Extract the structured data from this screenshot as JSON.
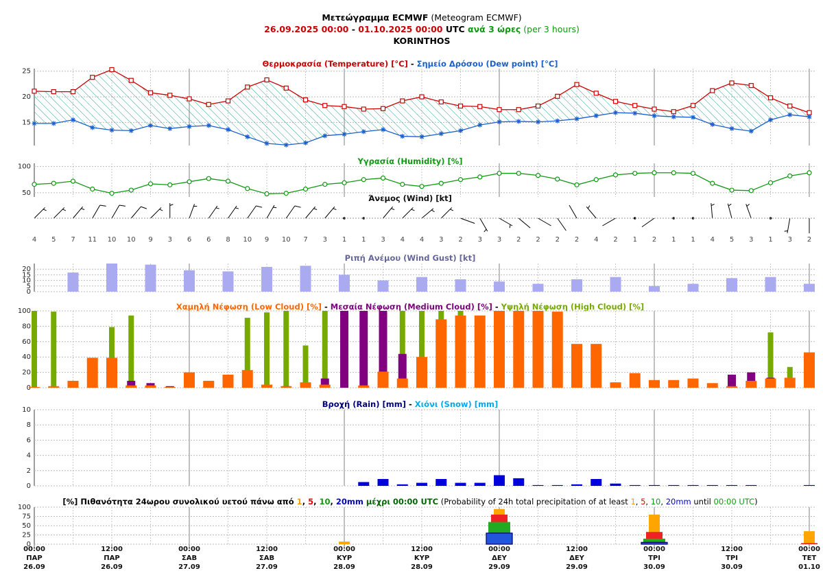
{
  "header": {
    "lines": [
      [
        {
          "text": "Μετεώγραμμα ECMWF",
          "color": "#000000",
          "bold": true
        },
        {
          "text": " (Meteogram ECMWF)",
          "color": "#000000",
          "bold": false
        }
      ],
      [
        {
          "text": "26.09.2025 00:00",
          "color": "#cc0000",
          "bold": true
        },
        {
          "text": " - ",
          "color": "#000000",
          "bold": true
        },
        {
          "text": "01.10.2025 00:00",
          "color": "#cc0000",
          "bold": true
        },
        {
          "text": " UTC",
          "color": "#000000",
          "bold": true
        },
        {
          "text": " ανά 3 ώρες",
          "color": "#119911",
          "bold": true
        },
        {
          "text": " (per 3 hours)",
          "color": "#119911",
          "bold": false
        }
      ],
      [
        {
          "text": "KORINTHOS",
          "color": "#000000",
          "bold": true
        }
      ]
    ]
  },
  "x_axis": {
    "categories": [
      {
        "time": "00:00",
        "day": "ΠΑΡ",
        "date": "26.09"
      },
      null,
      null,
      null,
      {
        "time": "12:00",
        "day": "ΠΑΡ",
        "date": "26.09"
      },
      null,
      null,
      null,
      {
        "time": "00:00",
        "day": "ΣΑΒ",
        "date": "27.09"
      },
      null,
      null,
      null,
      {
        "time": "12:00",
        "day": "ΣΑΒ",
        "date": "27.09"
      },
      null,
      null,
      null,
      {
        "time": "00:00",
        "day": "ΚΥΡ",
        "date": "28.09"
      },
      null,
      null,
      null,
      {
        "time": "12:00",
        "day": "ΚΥΡ",
        "date": "28.09"
      },
      null,
      null,
      null,
      {
        "time": "00:00",
        "day": "ΔΕΥ",
        "date": "29.09"
      },
      null,
      null,
      null,
      {
        "time": "12:00",
        "day": "ΔΕΥ",
        "date": "29.09"
      },
      null,
      null,
      null,
      {
        "time": "00:00",
        "day": "ΤΡΙ",
        "date": "30.09"
      },
      null,
      null,
      null,
      {
        "time": "12:00",
        "day": "ΤΡΙ",
        "date": "30.09"
      },
      null,
      null,
      null,
      {
        "time": "00:00",
        "day": "ΤΕΤ",
        "date": "01.10"
      }
    ]
  },
  "chart_data": [
    {
      "type": "line",
      "title": [
        {
          "text": "Θερμοκρασία (Temperature) [°C]",
          "color": "#cc0000",
          "bold": true
        },
        {
          "text": " - ",
          "color": "#000000",
          "bold": true
        },
        {
          "text": "Σημείο Δρόσου (Dew point) [°C]",
          "color": "#1a5fd0",
          "bold": true
        }
      ],
      "ylim": [
        10.5,
        25.5
      ],
      "yticks": [
        15,
        20,
        25
      ],
      "grid": true,
      "fill_between": "#2aa198",
      "series": [
        {
          "color": "#cc0000",
          "marker": "square",
          "values": [
            21.1,
            21.0,
            21.0,
            23.8,
            25.3,
            23.2,
            20.8,
            20.3,
            19.6,
            18.5,
            19.2,
            21.9,
            23.3,
            21.7,
            19.4,
            18.3,
            18.1,
            17.6,
            17.7,
            19.2,
            20.0,
            19.0,
            18.2,
            18.1,
            17.5,
            17.5,
            18.2,
            20.1,
            22.4,
            20.7,
            19.1,
            18.3,
            17.6,
            17.1,
            18.3,
            21.2,
            22.7,
            22.2,
            19.8,
            18.2,
            16.9
          ]
        },
        {
          "color": "#1a5fd0",
          "marker": "star",
          "values": [
            14.8,
            14.8,
            15.5,
            14.0,
            13.5,
            13.4,
            14.4,
            13.8,
            14.2,
            14.4,
            13.6,
            12.2,
            10.9,
            10.6,
            11.0,
            12.4,
            12.7,
            13.2,
            13.6,
            12.3,
            12.2,
            12.8,
            13.4,
            14.5,
            15.1,
            15.2,
            15.1,
            15.3,
            15.7,
            16.3,
            16.9,
            16.8,
            16.3,
            16.1,
            16.0,
            14.6,
            13.8,
            13.3,
            15.5,
            16.5,
            16.1
          ]
        }
      ]
    },
    {
      "type": "line",
      "title": [
        {
          "text": "Υγρασία (Humidity) [%]",
          "color": "#119911",
          "bold": true
        }
      ],
      "ylim": [
        42,
        106
      ],
      "yticks": [
        50,
        100
      ],
      "grid": true,
      "series": [
        {
          "color": "#119911",
          "marker": "circle",
          "values": [
            66,
            68,
            72,
            57,
            49,
            55,
            67,
            65,
            71,
            77,
            72,
            58,
            48,
            49,
            57,
            66,
            69,
            75,
            78,
            66,
            62,
            68,
            75,
            80,
            87,
            87,
            83,
            76,
            65,
            75,
            84,
            87,
            88,
            88,
            87,
            68,
            55,
            54,
            69,
            82,
            88
          ]
        }
      ]
    },
    {
      "type": "wind_barbs",
      "title": [
        {
          "text": "Άνεμος (Wind) [kt]",
          "color": "#111111",
          "bold": true
        }
      ],
      "color": "#000000",
      "speed": [
        4,
        5,
        7,
        11,
        10,
        10,
        9,
        3,
        6,
        6,
        8,
        10,
        9,
        10,
        7,
        3,
        1,
        1,
        3,
        4,
        4,
        3,
        2,
        3,
        3,
        2,
        2,
        2,
        2,
        4,
        2,
        1,
        2,
        1,
        1,
        4,
        5,
        3,
        1,
        3,
        2
      ],
      "direction": [
        45,
        45,
        40,
        30,
        30,
        40,
        45,
        0,
        20,
        35,
        35,
        35,
        30,
        35,
        40,
        40,
        0,
        0,
        40,
        45,
        50,
        45,
        110,
        150,
        120,
        130,
        120,
        145,
        330,
        320,
        240,
        240,
        235,
        250,
        0,
        355,
        345,
        340,
        135,
        190,
        180
      ]
    },
    {
      "type": "bar",
      "title": [
        {
          "text": "Ριπή Ανέμου (Wind Gust) [kt]",
          "color": "#666699",
          "bold": true
        }
      ],
      "ylim": [
        0,
        25
      ],
      "yticks": [
        0,
        5,
        10,
        15,
        20
      ],
      "grid": true,
      "series": [
        {
          "color": "#aaaaf0",
          "values": [
            null,
            null,
            17,
            null,
            25,
            null,
            24,
            null,
            19,
            null,
            18,
            null,
            22,
            null,
            23,
            null,
            15,
            null,
            10,
            null,
            13,
            null,
            11,
            null,
            9,
            null,
            7,
            null,
            11,
            null,
            13,
            null,
            5,
            null,
            7,
            null,
            12,
            null,
            13,
            null,
            7
          ]
        }
      ]
    },
    {
      "type": "bar",
      "title": [
        {
          "text": "Χαμηλή Νέφωση (Low Cloud) [%]",
          "color": "#ff6600",
          "bold": true
        },
        {
          "text": " - ",
          "color": "#000000",
          "bold": true
        },
        {
          "text": "Μεσαία Νέφωση (Medium Cloud) [%]",
          "color": "#800080",
          "bold": true
        },
        {
          "text": " - ",
          "color": "#000000",
          "bold": true
        },
        {
          "text": "Υψηλή Νέφωση (High Cloud) [%]",
          "color": "#77aa00",
          "bold": true
        }
      ],
      "ylim": [
        0,
        100
      ],
      "yticks": [
        0,
        20,
        40,
        60,
        80,
        100
      ],
      "grid": true,
      "series": [
        {
          "color": "#ff6600",
          "values": [
            1,
            2,
            9,
            39,
            39,
            3,
            3,
            1,
            20,
            9,
            17,
            23,
            4,
            2,
            7,
            4,
            0,
            3,
            21,
            12,
            40,
            89,
            94,
            94,
            100,
            100,
            100,
            99,
            57,
            57,
            7,
            19,
            10,
            10,
            12,
            6,
            2,
            9,
            12,
            13,
            46
          ]
        },
        {
          "color": "#800080",
          "values": [
            0,
            0,
            0,
            0,
            0,
            9,
            6,
            2,
            0,
            0,
            0,
            0,
            0,
            2,
            0,
            12,
            100,
            100,
            100,
            44,
            0,
            0,
            0,
            0,
            0,
            0,
            0,
            0,
            0,
            0,
            0,
            0,
            0,
            0,
            0,
            0,
            17,
            20,
            13,
            0,
            0
          ]
        },
        {
          "color": "#77aa00",
          "values": [
            100,
            99,
            0,
            0,
            79,
            94,
            0,
            0,
            0,
            0,
            0,
            91,
            98,
            100,
            55,
            100,
            0,
            0,
            0,
            100,
            100,
            100,
            100,
            0,
            0,
            0,
            0,
            0,
            0,
            0,
            0,
            0,
            0,
            0,
            0,
            0,
            0,
            0,
            72,
            27,
            0
          ]
        }
      ]
    },
    {
      "type": "bar",
      "title": [
        {
          "text": "Βροχή (Rain) [mm]",
          "color": "#000080",
          "bold": true
        },
        {
          "text": " - ",
          "color": "#000000",
          "bold": true
        },
        {
          "text": "Χιόνι (Snow) [mm]",
          "color": "#00aaee",
          "bold": true
        }
      ],
      "ylim": [
        0,
        10
      ],
      "yticks": [
        0,
        2,
        4,
        6,
        8,
        10
      ],
      "grid": true,
      "series": [
        {
          "color": "#0000dd",
          "values": [
            0,
            0,
            0,
            0,
            0,
            0,
            0,
            0,
            0,
            0,
            0,
            0,
            0,
            0,
            0,
            0,
            0,
            0.5,
            0.9,
            0.2,
            0.4,
            0.9,
            0.4,
            0.4,
            1.4,
            1.0,
            0.1,
            0.1,
            0.2,
            0.9,
            0.3,
            0.1,
            0.1,
            0.1,
            0.1,
            0.1,
            0.1,
            0.1,
            0,
            0,
            0.1
          ]
        },
        {
          "color": "#00aaee",
          "values": [
            0,
            0,
            0,
            0,
            0,
            0,
            0,
            0,
            0,
            0,
            0,
            0,
            0,
            0,
            0,
            0,
            0,
            0,
            0,
            0,
            0,
            0,
            0,
            0,
            0,
            0,
            0,
            0,
            0,
            0,
            0,
            0,
            0,
            0,
            0,
            0,
            0,
            0,
            0,
            0,
            0
          ]
        }
      ]
    },
    {
      "type": "bar",
      "title": [
        {
          "text": "[%] Πιθανότητα 24ωρου συνολικού υετού πάνω από ",
          "color": "#000000",
          "bold": true
        },
        {
          "text": "1",
          "color": "#ff9900",
          "bold": true
        },
        {
          "text": ", ",
          "color": "#000000",
          "bold": true
        },
        {
          "text": "5",
          "color": "#ee0000",
          "bold": true
        },
        {
          "text": ", ",
          "color": "#000000",
          "bold": true
        },
        {
          "text": "10",
          "color": "#119911",
          "bold": true
        },
        {
          "text": ", ",
          "color": "#000000",
          "bold": true
        },
        {
          "text": "20mm",
          "color": "#0000cc",
          "bold": true
        },
        {
          "text": " μέχρι 00:00 UTC",
          "color": "#006600",
          "bold": true
        },
        {
          "text": " (Probability of 24h total precipitation of at least ",
          "color": "#000000",
          "bold": false
        },
        {
          "text": "1",
          "color": "#ff9900",
          "bold": false
        },
        {
          "text": ", ",
          "color": "#000000",
          "bold": false
        },
        {
          "text": "5",
          "color": "#ee0000",
          "bold": false
        },
        {
          "text": ", ",
          "color": "#000000",
          "bold": false
        },
        {
          "text": "10",
          "color": "#119911",
          "bold": false
        },
        {
          "text": ", ",
          "color": "#000000",
          "bold": false
        },
        {
          "text": "20mm",
          "color": "#0000cc",
          "bold": false
        },
        {
          "text": " until ",
          "color": "#000000",
          "bold": false
        },
        {
          "text": "00:00 UTC",
          "color": "#119911",
          "bold": false
        },
        {
          "text": ")",
          "color": "#000000",
          "bold": false
        }
      ],
      "ylim": [
        0,
        100
      ],
      "yticks": [
        0,
        25,
        50,
        75,
        100
      ],
      "grid": true,
      "series": [
        {
          "color": "#ffa500",
          "values": [
            null,
            null,
            null,
            null,
            null,
            null,
            null,
            null,
            0,
            null,
            null,
            null,
            null,
            null,
            null,
            null,
            7,
            null,
            null,
            null,
            null,
            null,
            null,
            null,
            95,
            null,
            null,
            null,
            null,
            null,
            null,
            null,
            80,
            null,
            null,
            null,
            null,
            null,
            null,
            null,
            35
          ]
        },
        {
          "color": "#ee2222",
          "values": [
            null,
            null,
            null,
            null,
            null,
            null,
            null,
            null,
            0,
            null,
            null,
            null,
            null,
            null,
            null,
            null,
            0,
            null,
            null,
            null,
            null,
            null,
            null,
            null,
            80,
            null,
            null,
            null,
            null,
            null,
            null,
            null,
            33,
            null,
            null,
            null,
            null,
            null,
            null,
            null,
            3
          ]
        },
        {
          "color": "#22aa22",
          "values": [
            null,
            null,
            null,
            null,
            null,
            null,
            null,
            null,
            0,
            null,
            null,
            null,
            null,
            null,
            null,
            null,
            0,
            null,
            null,
            null,
            null,
            null,
            null,
            null,
            60,
            null,
            null,
            null,
            null,
            null,
            null,
            null,
            15,
            null,
            null,
            null,
            null,
            null,
            null,
            null,
            0
          ]
        },
        {
          "color": "#2255dd",
          "values": [
            null,
            null,
            null,
            null,
            null,
            null,
            null,
            null,
            0,
            null,
            null,
            null,
            null,
            null,
            null,
            null,
            0,
            null,
            null,
            null,
            null,
            null,
            null,
            null,
            30,
            null,
            null,
            null,
            null,
            null,
            null,
            null,
            5,
            null,
            null,
            null,
            null,
            null,
            null,
            null,
            0
          ]
        }
      ]
    }
  ]
}
